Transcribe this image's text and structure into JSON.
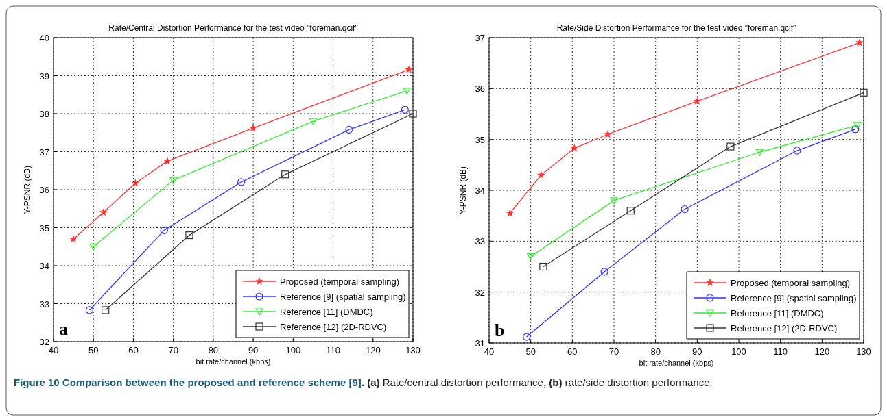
{
  "chart_data": [
    {
      "type": "line",
      "title": "Rate/Central Distortion Performance for the test video \"foreman.qcif\"",
      "xlabel": "bit rate/channel (kbps)",
      "ylabel": "Y-PSNR (dB)",
      "xlim": [
        40,
        130
      ],
      "xticks": [
        40,
        50,
        60,
        70,
        80,
        90,
        100,
        110,
        120,
        130
      ],
      "ylim": [
        32,
        40
      ],
      "yticks": [
        32,
        33,
        34,
        35,
        36,
        37,
        38,
        39,
        40
      ],
      "grid": true,
      "legend": "bottom right",
      "annotations": [
        "a",
        "Figure 10 Comparison between the proposed and reference scheme [9].",
        "(a) Rate/central distortion performance, (b) rate/side distortion performance."
      ],
      "series": [
        {
          "name": "Proposed (temporal sampling)",
          "color": "#ff3333",
          "marker": "star",
          "x": [
            45,
            52.5,
            60.5,
            68.5,
            90,
            129
          ],
          "values": [
            34.7,
            35.4,
            36.17,
            36.75,
            37.62,
            39.16
          ]
        },
        {
          "name": "Reference [9] (spatial sampling)",
          "color": "#3333ff",
          "marker": "circle",
          "x": [
            49,
            67.7,
            87,
            114,
            128
          ],
          "values": [
            32.83,
            34.93,
            36.2,
            37.58,
            38.1
          ]
        },
        {
          "name": "Reference [11] (DMDC)",
          "color": "#33ee33",
          "marker": "triangle",
          "x": [
            50,
            70,
            105,
            128.5
          ],
          "values": [
            34.5,
            36.25,
            37.8,
            38.6
          ]
        },
        {
          "name": "Reference [12] (2D-RDVC)",
          "color": "#333333",
          "marker": "square",
          "x": [
            53,
            74,
            98,
            130
          ],
          "values": [
            32.83,
            34.8,
            36.4,
            38.0
          ]
        }
      ]
    },
    {
      "type": "line",
      "title": "Rate/Side Distortion Performance for the test video \"foreman.qcif\"",
      "xlabel": "bit rate/channel (kbps)",
      "ylabel": "Y-PSNR (dB)",
      "xlim": [
        40,
        130
      ],
      "xticks": [
        40,
        50,
        60,
        70,
        80,
        90,
        100,
        110,
        120,
        130
      ],
      "ylim": [
        31,
        37
      ],
      "yticks": [
        31,
        32,
        33,
        34,
        35,
        36,
        37
      ],
      "grid": true,
      "legend": "bottom right",
      "annotations": [
        "b"
      ],
      "series": [
        {
          "name": "Proposed (temporal sampling)",
          "color": "#ff3333",
          "marker": "star",
          "x": [
            45,
            52.5,
            60.5,
            68.5,
            90,
            129
          ],
          "values": [
            33.55,
            34.3,
            34.83,
            35.1,
            35.75,
            36.9
          ]
        },
        {
          "name": "Reference [9] (spatial sampling)",
          "color": "#3333ff",
          "marker": "circle",
          "x": [
            49,
            67.7,
            87,
            114,
            128
          ],
          "values": [
            31.12,
            32.4,
            33.63,
            34.78,
            35.2
          ]
        },
        {
          "name": "Reference [11] (DMDC)",
          "color": "#33ee33",
          "marker": "triangle",
          "x": [
            50,
            70,
            105,
            128.5
          ],
          "values": [
            32.7,
            33.8,
            34.75,
            35.28
          ]
        },
        {
          "name": "Reference [12] (2D-RDVC)",
          "color": "#333333",
          "marker": "square",
          "x": [
            53,
            74,
            98,
            130
          ],
          "values": [
            32.5,
            33.6,
            34.86,
            35.92
          ]
        }
      ]
    }
  ]
}
